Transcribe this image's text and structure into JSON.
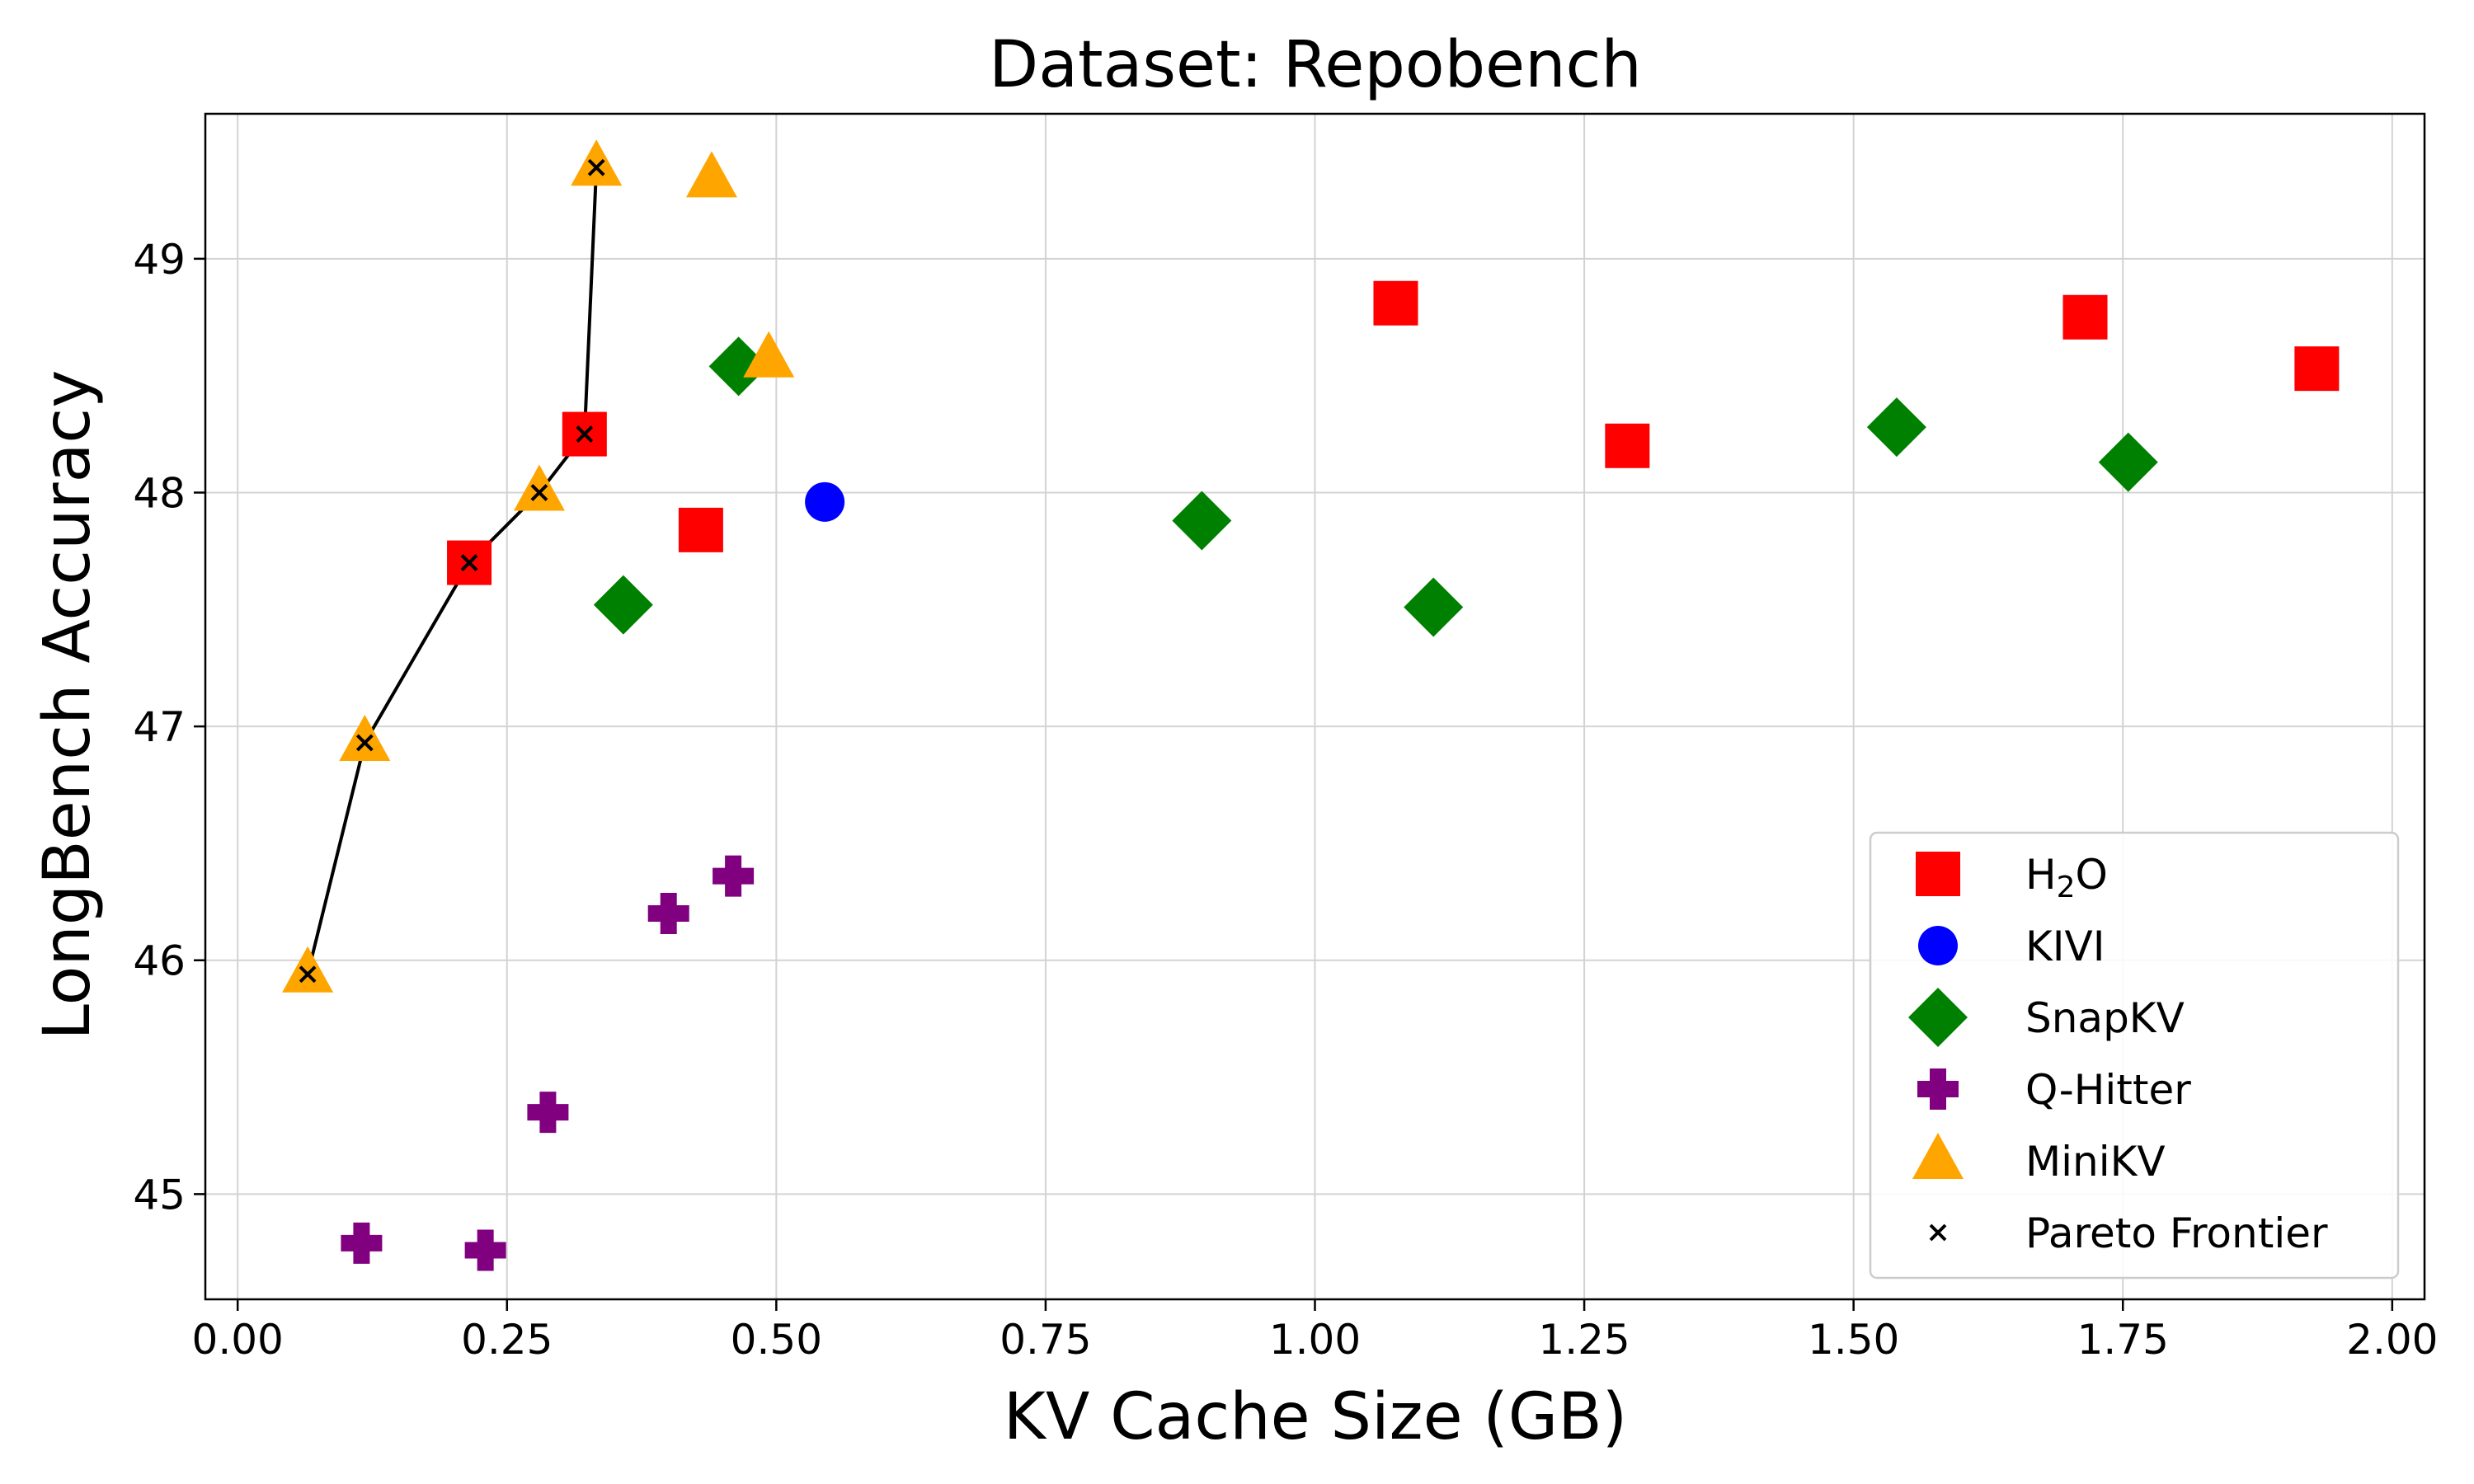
{
  "chart_data": {
    "type": "scatter",
    "title": "Dataset: Repobench",
    "xlabel": "KV Cache Size (GB)",
    "ylabel": "LongBench Accuracy",
    "xlim": [
      -0.03,
      2.03
    ],
    "ylim": [
      44.55,
      49.62
    ],
    "xticks": [
      0.0,
      0.25,
      0.5,
      0.75,
      1.0,
      1.25,
      1.5,
      1.75,
      2.0
    ],
    "xtick_labels": [
      "0.00",
      "0.25",
      "0.50",
      "0.75",
      "1.00",
      "1.25",
      "1.50",
      "1.75",
      "2.00"
    ],
    "yticks": [
      45,
      46,
      47,
      48,
      49
    ],
    "ytick_labels": [
      "45",
      "46",
      "47",
      "48",
      "49"
    ],
    "grid": true,
    "legend_position": "bottom-right",
    "series": [
      {
        "name": "H2O",
        "label_main": "H",
        "label_sub": "2",
        "label_end": "O",
        "marker": "square",
        "color": "#ff0000",
        "points": [
          {
            "x": 0.215,
            "y": 47.7
          },
          {
            "x": 0.322,
            "y": 48.25
          },
          {
            "x": 0.43,
            "y": 47.84
          },
          {
            "x": 1.075,
            "y": 48.81
          },
          {
            "x": 1.29,
            "y": 48.2
          },
          {
            "x": 1.715,
            "y": 48.75
          },
          {
            "x": 1.93,
            "y": 48.53
          }
        ]
      },
      {
        "name": "KIVI",
        "marker": "circle",
        "color": "#0000ff",
        "points": [
          {
            "x": 0.545,
            "y": 47.96
          }
        ]
      },
      {
        "name": "SnapKV",
        "marker": "diamond",
        "color": "#008000",
        "points": [
          {
            "x": 0.358,
            "y": 47.52
          },
          {
            "x": 0.465,
            "y": 48.54
          },
          {
            "x": 0.895,
            "y": 47.88
          },
          {
            "x": 1.11,
            "y": 47.51
          },
          {
            "x": 1.54,
            "y": 48.28
          },
          {
            "x": 1.755,
            "y": 48.13
          }
        ]
      },
      {
        "name": "Q-Hitter",
        "marker": "plus",
        "color": "#800080",
        "points": [
          {
            "x": 0.115,
            "y": 44.79
          },
          {
            "x": 0.23,
            "y": 44.76
          },
          {
            "x": 0.288,
            "y": 45.35
          },
          {
            "x": 0.4,
            "y": 46.2
          },
          {
            "x": 0.46,
            "y": 46.36
          }
        ]
      },
      {
        "name": "MiniKV",
        "marker": "triangle",
        "color": "#ffa500",
        "points": [
          {
            "x": 0.065,
            "y": 45.94
          },
          {
            "x": 0.118,
            "y": 46.93
          },
          {
            "x": 0.28,
            "y": 48.0
          },
          {
            "x": 0.333,
            "y": 49.39
          },
          {
            "x": 0.44,
            "y": 49.34
          },
          {
            "x": 0.493,
            "y": 48.57
          }
        ]
      },
      {
        "name": "Pareto Frontier",
        "marker": "x-line",
        "color": "#000000",
        "points": [
          {
            "x": 0.065,
            "y": 45.94
          },
          {
            "x": 0.118,
            "y": 46.93
          },
          {
            "x": 0.215,
            "y": 47.7
          },
          {
            "x": 0.28,
            "y": 48.0
          },
          {
            "x": 0.322,
            "y": 48.25
          },
          {
            "x": 0.333,
            "y": 49.39
          }
        ]
      }
    ]
  }
}
